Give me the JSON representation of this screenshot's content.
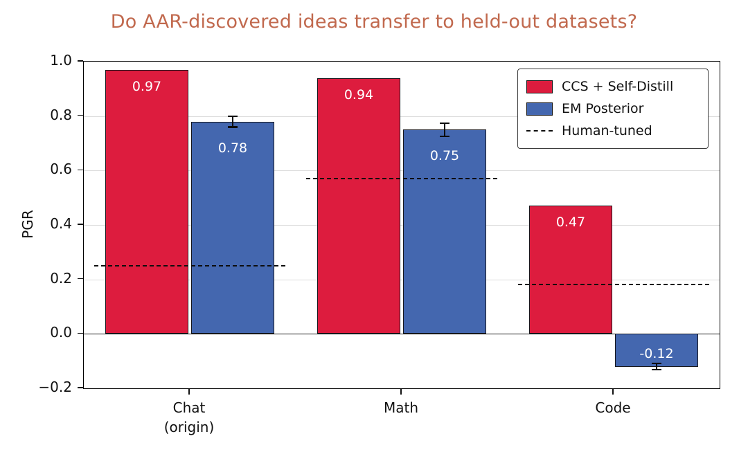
{
  "chart_data": {
    "type": "bar",
    "title": "Do AAR-discovered ideas transfer to held-out datasets?",
    "title_color": "#c1694e",
    "ylabel": "PGR",
    "xlabel": "",
    "ylim": [
      -0.2,
      1.0
    ],
    "yticks": [
      -0.2,
      0.0,
      0.2,
      0.4,
      0.6,
      0.8,
      1.0
    ],
    "grid": "horizontal",
    "categories": [
      "Chat\n(origin)",
      "Math",
      "Code"
    ],
    "series": [
      {
        "name": "CCS + Self-Distill",
        "color": "#dd1c3e",
        "values": [
          0.97,
          0.94,
          0.47
        ]
      },
      {
        "name": "EM Posterior",
        "color": "#4467af",
        "values": [
          0.78,
          0.75,
          -0.12
        ],
        "errors": [
          0.02,
          0.025,
          0.012
        ]
      }
    ],
    "human_tuned": {
      "name": "Human-tuned",
      "style": "dashed",
      "color": "#0d0d0d",
      "values": [
        0.25,
        0.57,
        0.18
      ]
    },
    "legend": {
      "position": "upper-right",
      "entries": [
        "CCS + Self-Distill",
        "EM Posterior",
        "Human-tuned"
      ]
    }
  }
}
